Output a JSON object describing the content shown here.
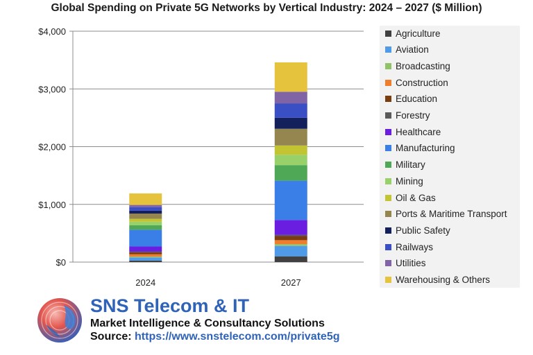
{
  "chart_data": {
    "type": "bar",
    "stacked": true,
    "title": "Global Spending on Private 5G Networks by Vertical Industry: 2024 – 2027 ($ Million)",
    "categories": [
      "2024",
      "2027"
    ],
    "ylim": [
      0,
      4000
    ],
    "yticks": [
      0,
      1000,
      2000,
      3000,
      4000
    ],
    "ytick_labels": [
      "$0",
      "$1,000",
      "$2,000",
      "$3,000",
      "$4,000"
    ],
    "grid": true,
    "legend_position": "right",
    "series": [
      {
        "name": "Agriculture",
        "color": "#404040",
        "values": [
          25,
          100
        ]
      },
      {
        "name": "Aviation",
        "color": "#4f9be8",
        "values": [
          55,
          180
        ]
      },
      {
        "name": "Broadcasting",
        "color": "#8fc269",
        "values": [
          15,
          30
        ]
      },
      {
        "name": "Construction",
        "color": "#ee7d2c",
        "values": [
          40,
          70
        ]
      },
      {
        "name": "Education",
        "color": "#7a3d12",
        "values": [
          35,
          70
        ]
      },
      {
        "name": "Forestry",
        "color": "#5a5a5a",
        "values": [
          10,
          20
        ]
      },
      {
        "name": "Healthcare",
        "color": "#6a1fe0",
        "values": [
          90,
          260
        ]
      },
      {
        "name": "Manufacturing",
        "color": "#3a7ee8",
        "values": [
          290,
          680
        ]
      },
      {
        "name": "Military",
        "color": "#4ea856",
        "values": [
          80,
          270
        ]
      },
      {
        "name": "Mining",
        "color": "#98d06a",
        "values": [
          60,
          180
        ]
      },
      {
        "name": "Oil & Gas",
        "color": "#c3c431",
        "values": [
          50,
          160
        ]
      },
      {
        "name": "Ports & Maritime Transport",
        "color": "#958650",
        "values": [
          90,
          290
        ]
      },
      {
        "name": "Public Safety",
        "color": "#13205c",
        "values": [
          50,
          190
        ]
      },
      {
        "name": "Railways",
        "color": "#3a4fc4",
        "values": [
          60,
          250
        ]
      },
      {
        "name": "Utilities",
        "color": "#8064a6",
        "values": [
          40,
          200
        ]
      },
      {
        "name": "Warehousing & Others",
        "color": "#e5c33d",
        "values": [
          200,
          510
        ]
      }
    ]
  },
  "brand": {
    "name": "SNS Telecom & IT",
    "tagline": "Market Intelligence & Consultancy Solutions",
    "source_label": "Source: ",
    "source_url": "https://www.snstelecom.com/private5g"
  }
}
